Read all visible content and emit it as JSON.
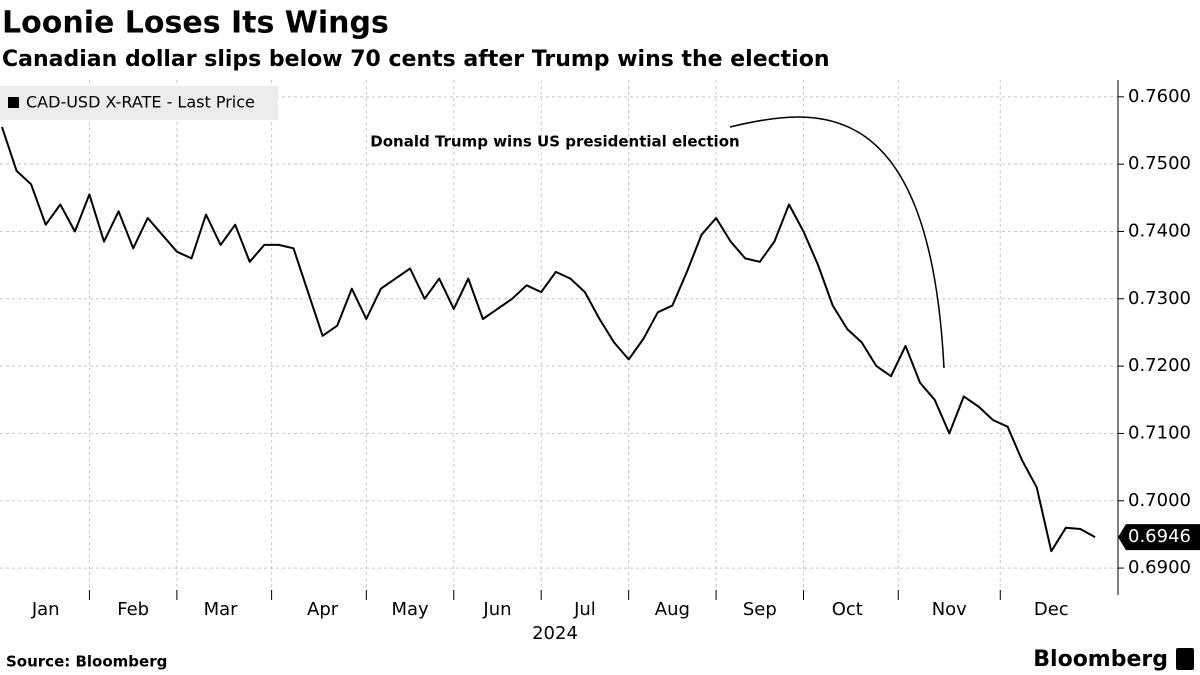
{
  "chart_data": {
    "type": "line",
    "title": "Loonie Loses Its Wings",
    "subtitle": "Canadian dollar slips below 70 cents after Trump wins the election",
    "x_label": "2024",
    "annotation": "Donald Trump wins US presidential election",
    "source": "Source: Bloomberg",
    "brand": "Bloomberg",
    "categories": [
      null,
      null,
      null,
      "Jan",
      null,
      null,
      null,
      null,
      null,
      "Feb",
      null,
      null,
      null,
      null,
      null,
      "Mar",
      null,
      null,
      null,
      null,
      null,
      null,
      "Apr",
      null,
      null,
      null,
      null,
      null,
      "May",
      null,
      null,
      null,
      null,
      null,
      "Jun",
      null,
      null,
      null,
      null,
      null,
      "Jul",
      null,
      null,
      null,
      null,
      null,
      "Aug",
      null,
      null,
      null,
      null,
      null,
      "Sep",
      null,
      null,
      null,
      null,
      null,
      "Oct",
      null,
      null,
      null,
      null,
      null,
      null,
      "Nov",
      null,
      null,
      null,
      null,
      null,
      null,
      "Dec",
      null,
      null,
      null
    ],
    "series": [
      {
        "name": "CAD-USD X-RATE - Last Price",
        "color": "#000000",
        "values": [
          0.7555,
          0.749,
          0.747,
          0.741,
          0.744,
          0.74,
          0.7455,
          0.7385,
          0.743,
          0.7375,
          0.742,
          0.7395,
          0.737,
          0.736,
          0.7425,
          0.738,
          0.741,
          0.7355,
          0.738,
          0.738,
          0.7375,
          0.731,
          0.7245,
          0.726,
          0.7315,
          0.727,
          0.7315,
          0.733,
          0.7345,
          0.73,
          0.733,
          0.7285,
          0.733,
          0.727,
          0.7285,
          0.73,
          0.732,
          0.731,
          0.734,
          0.733,
          0.731,
          0.727,
          0.7235,
          0.721,
          0.724,
          0.728,
          0.729,
          0.734,
          0.7395,
          0.742,
          0.7385,
          0.736,
          0.7355,
          0.7385,
          0.744,
          0.74,
          0.735,
          0.729,
          0.7255,
          0.7235,
          0.72,
          0.7185,
          0.723,
          0.7175,
          0.715,
          0.71,
          0.7155,
          0.714,
          0.712,
          0.711,
          0.706,
          0.702,
          0.6925,
          0.696,
          0.6958,
          0.6946
        ]
      }
    ],
    "ylim": [
      0.686,
      0.7625
    ],
    "yticks": [
      {
        "value": 0.76,
        "label": "0.7600"
      },
      {
        "value": 0.75,
        "label": "0.7500"
      },
      {
        "value": 0.74,
        "label": "0.7400"
      },
      {
        "value": 0.73,
        "label": "0.7300"
      },
      {
        "value": 0.72,
        "label": "0.7200"
      },
      {
        "value": 0.71,
        "label": "0.7100"
      },
      {
        "value": 0.7,
        "label": "0.7000"
      },
      {
        "value": 0.69,
        "label": "0.6900"
      }
    ],
    "grid": true
  }
}
